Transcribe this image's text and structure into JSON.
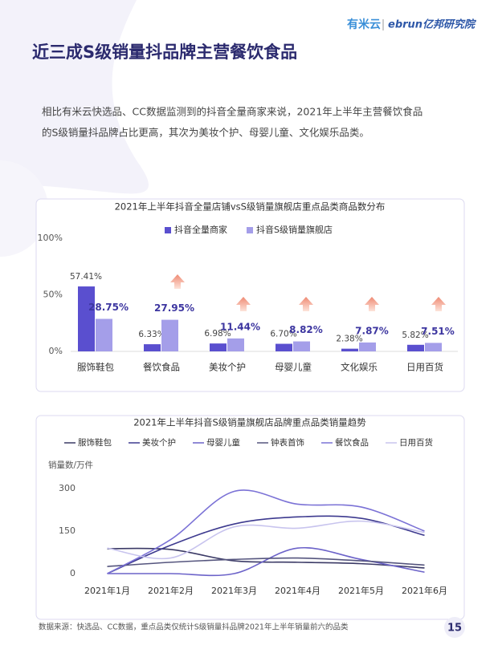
{
  "header": {
    "logo_left": "有米云",
    "logo_right": "ebrun亿邦研究院",
    "title": "近三成S级销量抖品牌主营餐饮食品"
  },
  "text": [
    "相比有米云快选品、CC数据监测到的抖音全量商家来说，2021年上半年主营餐饮食品",
    "的S级销量抖品牌占比更高，其次为美妆个护、母婴儿童、文化娱乐品类。"
  ],
  "chart_data": [
    {
      "type": "bar",
      "title": "2021年上半年抖音全量店铺vsS级销量旗舰店重点品类商品数分布",
      "categories": [
        "服饰鞋包",
        "餐饮食品",
        "美妆个护",
        "母婴儿童",
        "文化娱乐",
        "日用百货"
      ],
      "series": [
        {
          "name": "抖音全量商家",
          "color": "#5a4fcf",
          "values": [
            57.41,
            6.33,
            6.98,
            6.7,
            2.38,
            5.82
          ],
          "value_labels": [
            "57.41%",
            "6.33%",
            "6.98%",
            "6.70%",
            "2.38%",
            "5.82%"
          ]
        },
        {
          "name": "抖音S级销量旗舰店",
          "color": "#a49ee9",
          "values": [
            28.75,
            27.95,
            11.44,
            8.82,
            7.87,
            7.51
          ],
          "value_labels": [
            "28.75%",
            "27.95%",
            "11.44%",
            "8.82%",
            "7.87%",
            "7.51%"
          ]
        }
      ],
      "ylim": [
        0,
        100
      ],
      "yticks": [
        {
          "value": 0,
          "label": "0%"
        },
        {
          "value": 50,
          "label": "50%"
        },
        {
          "value": 100,
          "label": "100%"
        }
      ],
      "grid": false
    },
    {
      "type": "line",
      "title": "2021年上半年抖音S级销量旗舰店品牌重点品类销量趋势",
      "ylabel": "销量数/万件",
      "categories": [
        "2021年1月",
        "2021年2月",
        "2021年3月",
        "2021年4月",
        "2021年5月",
        "2021年6月"
      ],
      "series": [
        {
          "name": "服饰鞋包",
          "color": "#3b3a66",
          "values": [
            88,
            85,
            45,
            40,
            35,
            20
          ]
        },
        {
          "name": "美妆个护",
          "color": "#3d3a8f",
          "values": [
            0,
            100,
            175,
            200,
            195,
            135
          ]
        },
        {
          "name": "母婴儿童",
          "color": "#6c63c9",
          "values": [
            0,
            0,
            0,
            90,
            50,
            5
          ]
        },
        {
          "name": "钟表首饰",
          "color": "#55557e",
          "values": [
            25,
            40,
            50,
            55,
            45,
            30
          ]
        },
        {
          "name": "餐饮食品",
          "color": "#7b72d6",
          "values": [
            0,
            120,
            290,
            245,
            235,
            150
          ]
        },
        {
          "name": "日用百货",
          "color": "#c8c4ee",
          "values": [
            90,
            55,
            165,
            160,
            185,
            145
          ]
        }
      ],
      "ylim": [
        0,
        300
      ],
      "yticks": [
        0,
        150,
        300
      ],
      "grid": false
    }
  ],
  "footer": {
    "source": "数据来源：快选品、CC数据，重点品类仅统计S级销量抖品牌2021年上半年销量前六的品类",
    "page": "15"
  }
}
